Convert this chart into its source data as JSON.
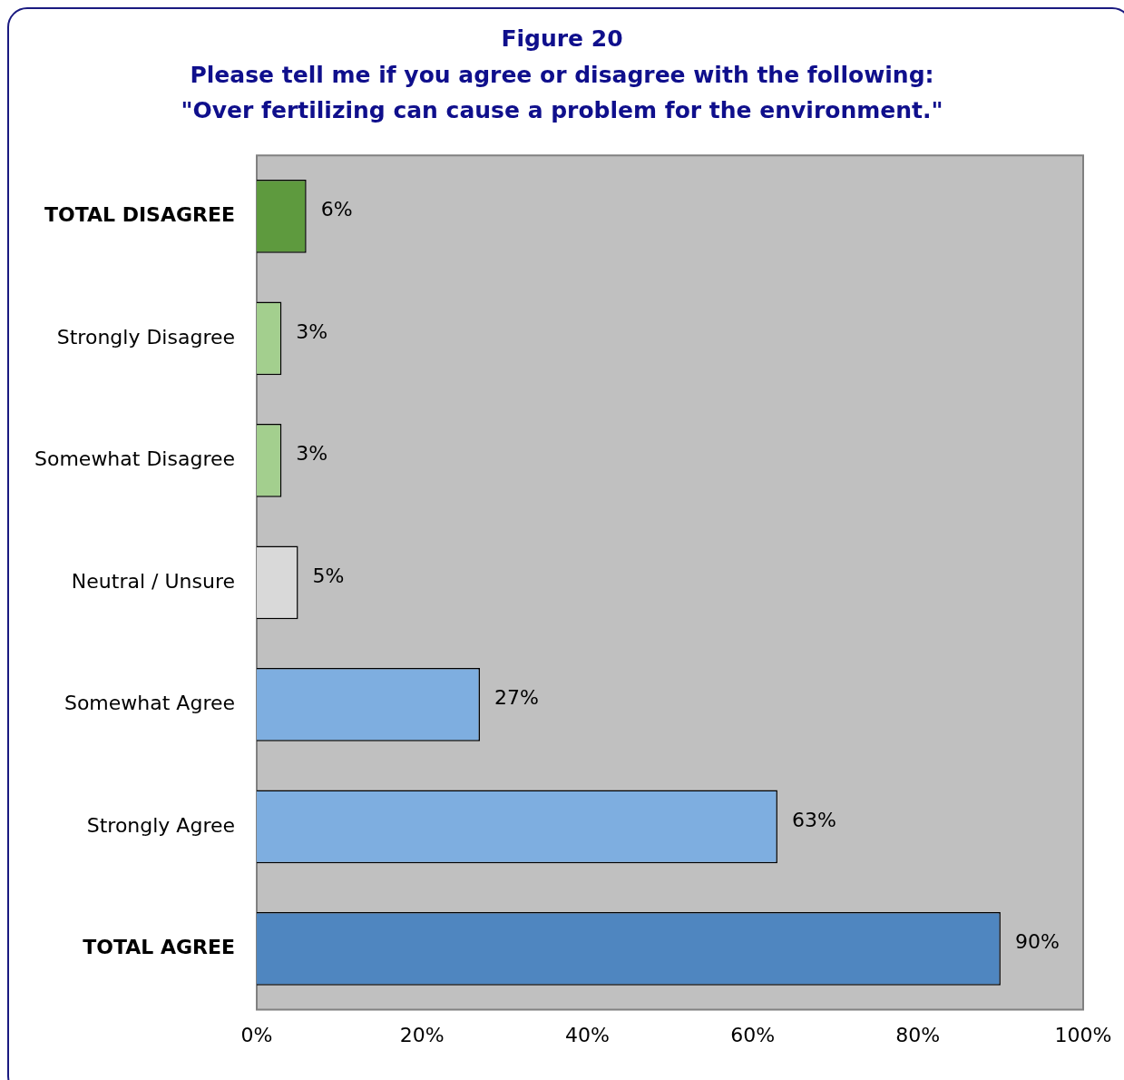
{
  "chart_data": {
    "type": "bar",
    "orientation": "horizontal",
    "title": "Figure 20",
    "subtitle": "Please tell me if you agree or disagree with the following: \"Over fertilizing can cause a problem for the environment.\"",
    "categories": [
      "TOTAL DISAGREE",
      "Strongly Disagree",
      "Somewhat Disagree",
      "Neutral / Unsure",
      "Somewhat Agree",
      "Strongly Agree",
      "TOTAL AGREE"
    ],
    "values": [
      6,
      3,
      3,
      5,
      27,
      63,
      90
    ],
    "value_labels": [
      "6%",
      "3%",
      "3%",
      "5%",
      "27%",
      "63%",
      "90%"
    ],
    "colors": [
      "#5e9a3e",
      "#a3cf8e",
      "#a3cf8e",
      "#d9d9d9",
      "#7eaee0",
      "#7eaee0",
      "#4f86c0"
    ],
    "xlim": [
      0,
      100
    ],
    "xticks": [
      {
        "value": 0,
        "label": "0%"
      },
      {
        "value": 20,
        "label": "20%"
      },
      {
        "value": 40,
        "label": "40%"
      },
      {
        "value": 60,
        "label": "60%"
      },
      {
        "value": 80,
        "label": "80%"
      },
      {
        "value": 100,
        "label": "100%"
      }
    ],
    "grid": false,
    "legend": false
  }
}
